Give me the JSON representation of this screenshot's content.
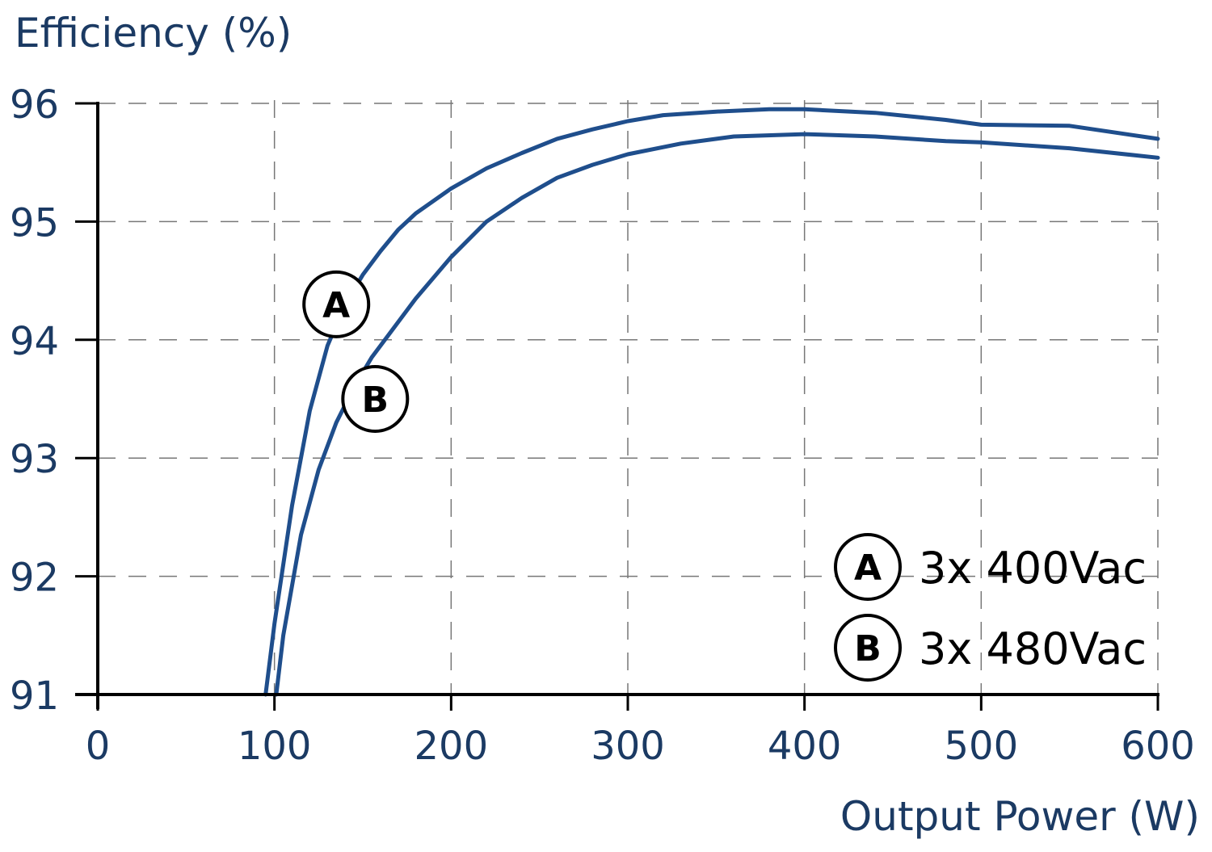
{
  "chart_data": {
    "type": "line",
    "title": "",
    "ylabel": "Efficiency (%)",
    "xlabel": "Output Power (W)",
    "xlim": [
      0,
      600
    ],
    "ylim": [
      91,
      96
    ],
    "x_ticks": [
      0,
      100,
      200,
      300,
      400,
      500,
      600
    ],
    "y_ticks": [
      91,
      92,
      93,
      94,
      95,
      96
    ],
    "x_tick_labels": [
      "0",
      "100",
      "200",
      "300",
      "400",
      "500",
      "600"
    ],
    "y_tick_labels": [
      "91",
      "92",
      "93",
      "94",
      "95",
      "96"
    ],
    "grid": true,
    "legend_position": "bottom-right",
    "series": [
      {
        "name": "3x 400Vac",
        "marker": "A",
        "color": "#1f4e8c",
        "x": [
          95,
          100,
          110,
          120,
          130,
          140,
          150,
          160,
          170,
          180,
          200,
          220,
          240,
          260,
          280,
          300,
          320,
          350,
          380,
          400,
          440,
          480,
          500,
          550,
          600
        ],
        "y": [
          91.0,
          91.6,
          92.6,
          93.4,
          93.95,
          94.3,
          94.55,
          94.75,
          94.93,
          95.07,
          95.28,
          95.45,
          95.58,
          95.7,
          95.78,
          95.85,
          95.9,
          95.93,
          95.95,
          95.95,
          95.92,
          95.86,
          95.82,
          95.81,
          95.7
        ]
      },
      {
        "name": "3x 480Vac",
        "marker": "B",
        "color": "#1f4e8c",
        "x": [
          101,
          105,
          115,
          125,
          135,
          145,
          155,
          165,
          180,
          200,
          220,
          240,
          260,
          280,
          300,
          330,
          360,
          400,
          440,
          480,
          500,
          550,
          600
        ],
        "y": [
          91.0,
          91.5,
          92.35,
          92.9,
          93.3,
          93.6,
          93.85,
          94.05,
          94.35,
          94.7,
          95.0,
          95.2,
          95.37,
          95.48,
          95.57,
          95.66,
          95.72,
          95.74,
          95.72,
          95.68,
          95.67,
          95.62,
          95.54
        ]
      }
    ]
  }
}
